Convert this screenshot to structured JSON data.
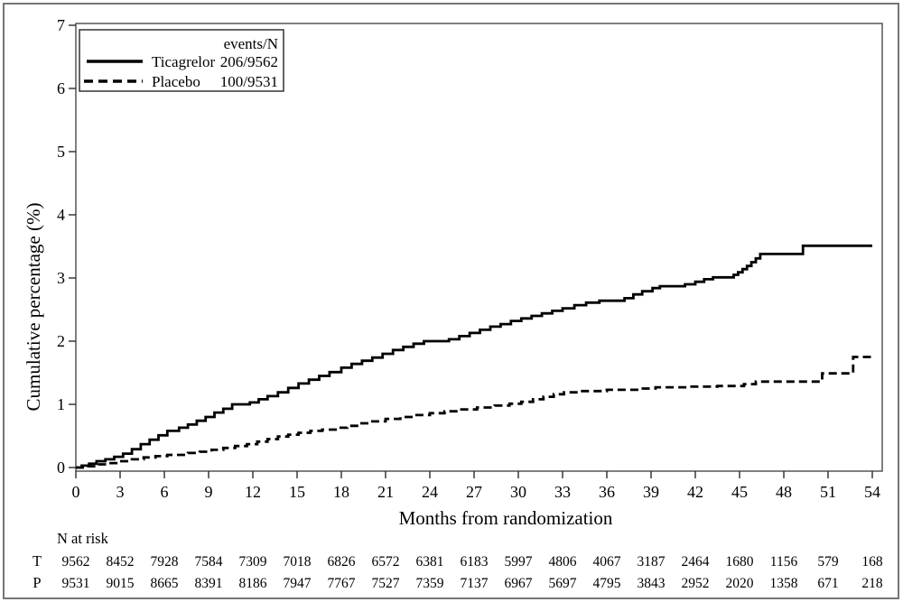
{
  "figure": {
    "ylabel": "Cumulative percentage (%)",
    "xlabel": "Months from randomization",
    "colors": {
      "curve": "#000000",
      "frame": "#4a4a4a",
      "outer_border": "#757575",
      "background": "#ffffff"
    }
  },
  "legend": {
    "header": "events/N",
    "items": [
      {
        "label": "Ticagrelor",
        "events_n": "206/9562",
        "style": "solid"
      },
      {
        "label": "Placebo",
        "events_n": "100/9531",
        "style": "dashed"
      }
    ]
  },
  "chart_data": {
    "type": "line",
    "step": true,
    "title": "",
    "xlabel": "Months from randomization",
    "ylabel": "Cumulative percentage (%)",
    "xlim": [
      0,
      54
    ],
    "ylim": [
      0,
      7
    ],
    "grid": false,
    "legend_position": "top-left",
    "xticks": [
      0,
      3,
      6,
      9,
      12,
      15,
      18,
      21,
      24,
      27,
      30,
      33,
      36,
      39,
      42,
      45,
      48,
      51,
      54
    ],
    "yticks": [
      0,
      1,
      2,
      3,
      4,
      5,
      6,
      7
    ],
    "series": [
      {
        "name": "Ticagrelor",
        "events_n": "206/9562",
        "line": "solid",
        "points": [
          [
            0,
            0
          ],
          [
            0.4,
            0.03
          ],
          [
            0.9,
            0.06
          ],
          [
            1.4,
            0.1
          ],
          [
            2.0,
            0.13
          ],
          [
            2.6,
            0.17
          ],
          [
            3.2,
            0.22
          ],
          [
            3.8,
            0.29
          ],
          [
            4.4,
            0.37
          ],
          [
            5.0,
            0.44
          ],
          [
            5.6,
            0.51
          ],
          [
            6.2,
            0.58
          ],
          [
            7.0,
            0.63
          ],
          [
            7.6,
            0.68
          ],
          [
            8.2,
            0.74
          ],
          [
            8.8,
            0.8
          ],
          [
            9.4,
            0.87
          ],
          [
            10.0,
            0.93
          ],
          [
            10.6,
            1.0
          ],
          [
            11.8,
            1.03
          ],
          [
            12.4,
            1.08
          ],
          [
            13.0,
            1.13
          ],
          [
            13.7,
            1.19
          ],
          [
            14.4,
            1.26
          ],
          [
            15.1,
            1.33
          ],
          [
            15.8,
            1.39
          ],
          [
            16.5,
            1.45
          ],
          [
            17.2,
            1.51
          ],
          [
            18.0,
            1.58
          ],
          [
            18.7,
            1.64
          ],
          [
            19.4,
            1.69
          ],
          [
            20.1,
            1.74
          ],
          [
            20.8,
            1.8
          ],
          [
            21.5,
            1.86
          ],
          [
            22.2,
            1.91
          ],
          [
            22.9,
            1.96
          ],
          [
            23.6,
            2.0
          ],
          [
            25.3,
            2.03
          ],
          [
            26.0,
            2.08
          ],
          [
            26.7,
            2.13
          ],
          [
            27.4,
            2.18
          ],
          [
            28.1,
            2.23
          ],
          [
            28.8,
            2.27
          ],
          [
            29.5,
            2.32
          ],
          [
            30.2,
            2.36
          ],
          [
            30.9,
            2.4
          ],
          [
            31.6,
            2.44
          ],
          [
            32.3,
            2.48
          ],
          [
            33.0,
            2.52
          ],
          [
            33.8,
            2.57
          ],
          [
            34.6,
            2.61
          ],
          [
            35.5,
            2.64
          ],
          [
            37.2,
            2.68
          ],
          [
            37.8,
            2.74
          ],
          [
            38.4,
            2.79
          ],
          [
            39.1,
            2.84
          ],
          [
            39.6,
            2.87
          ],
          [
            41.3,
            2.9
          ],
          [
            42.0,
            2.94
          ],
          [
            42.6,
            2.98
          ],
          [
            43.2,
            3.01
          ],
          [
            44.6,
            3.05
          ],
          [
            44.9,
            3.09
          ],
          [
            45.2,
            3.14
          ],
          [
            45.5,
            3.19
          ],
          [
            45.8,
            3.25
          ],
          [
            46.1,
            3.31
          ],
          [
            46.4,
            3.38
          ],
          [
            49.3,
            3.51
          ],
          [
            54,
            3.51
          ]
        ]
      },
      {
        "name": "Placebo",
        "events_n": "100/9531",
        "line": "dashed",
        "points": [
          [
            0,
            0
          ],
          [
            0.7,
            0.02
          ],
          [
            1.4,
            0.05
          ],
          [
            2.2,
            0.07
          ],
          [
            3.0,
            0.1
          ],
          [
            3.8,
            0.13
          ],
          [
            4.6,
            0.16
          ],
          [
            5.4,
            0.18
          ],
          [
            6.2,
            0.2
          ],
          [
            7.6,
            0.23
          ],
          [
            8.4,
            0.25
          ],
          [
            9.2,
            0.28
          ],
          [
            10.0,
            0.31
          ],
          [
            10.8,
            0.34
          ],
          [
            11.6,
            0.37
          ],
          [
            12.3,
            0.41
          ],
          [
            13.0,
            0.45
          ],
          [
            13.7,
            0.49
          ],
          [
            14.4,
            0.52
          ],
          [
            15.1,
            0.55
          ],
          [
            15.9,
            0.58
          ],
          [
            16.7,
            0.6
          ],
          [
            17.7,
            0.63
          ],
          [
            18.4,
            0.66
          ],
          [
            19.2,
            0.7
          ],
          [
            20.0,
            0.73
          ],
          [
            21.0,
            0.77
          ],
          [
            22.0,
            0.8
          ],
          [
            23.0,
            0.83
          ],
          [
            24.0,
            0.86
          ],
          [
            25.0,
            0.89
          ],
          [
            26.0,
            0.92
          ],
          [
            27.2,
            0.95
          ],
          [
            28.4,
            0.98
          ],
          [
            29.4,
            1.01
          ],
          [
            30.2,
            1.04
          ],
          [
            31.0,
            1.08
          ],
          [
            31.7,
            1.12
          ],
          [
            32.4,
            1.16
          ],
          [
            33.1,
            1.19
          ],
          [
            34.2,
            1.21
          ],
          [
            36.0,
            1.23
          ],
          [
            38.3,
            1.25
          ],
          [
            39.3,
            1.27
          ],
          [
            41.5,
            1.28
          ],
          [
            43.5,
            1.29
          ],
          [
            45.3,
            1.32
          ],
          [
            46.1,
            1.36
          ],
          [
            50.6,
            1.49
          ],
          [
            52.7,
            1.75
          ],
          [
            54,
            1.76
          ]
        ]
      }
    ],
    "n_at_risk": {
      "label": "N at risk",
      "months": [
        0,
        3,
        6,
        9,
        12,
        15,
        18,
        21,
        24,
        27,
        30,
        33,
        36,
        39,
        42,
        45,
        48,
        51,
        54
      ],
      "rows": [
        {
          "label": "T",
          "values": [
            9562,
            8452,
            7928,
            7584,
            7309,
            7018,
            6826,
            6572,
            6381,
            6183,
            5997,
            4806,
            4067,
            3187,
            2464,
            1680,
            1156,
            579,
            168
          ]
        },
        {
          "label": "P",
          "values": [
            9531,
            9015,
            8665,
            8391,
            8186,
            7947,
            7767,
            7527,
            7359,
            7137,
            6967,
            5697,
            4795,
            3843,
            2952,
            2020,
            1358,
            671,
            218
          ]
        }
      ]
    }
  }
}
